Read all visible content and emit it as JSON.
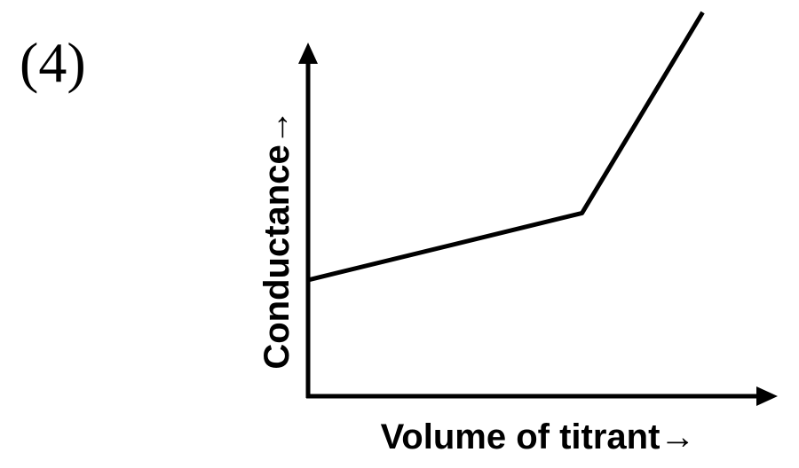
{
  "label": "(4)",
  "chart_data": {
    "type": "line",
    "x_label": "Volume of titrant→",
    "y_label": "Conductance→",
    "x": [
      0,
      59,
      85
    ],
    "values": [
      33,
      52,
      109
    ],
    "color": "#000000",
    "xlim": [
      0,
      100
    ],
    "ylim": [
      0,
      110
    ]
  }
}
